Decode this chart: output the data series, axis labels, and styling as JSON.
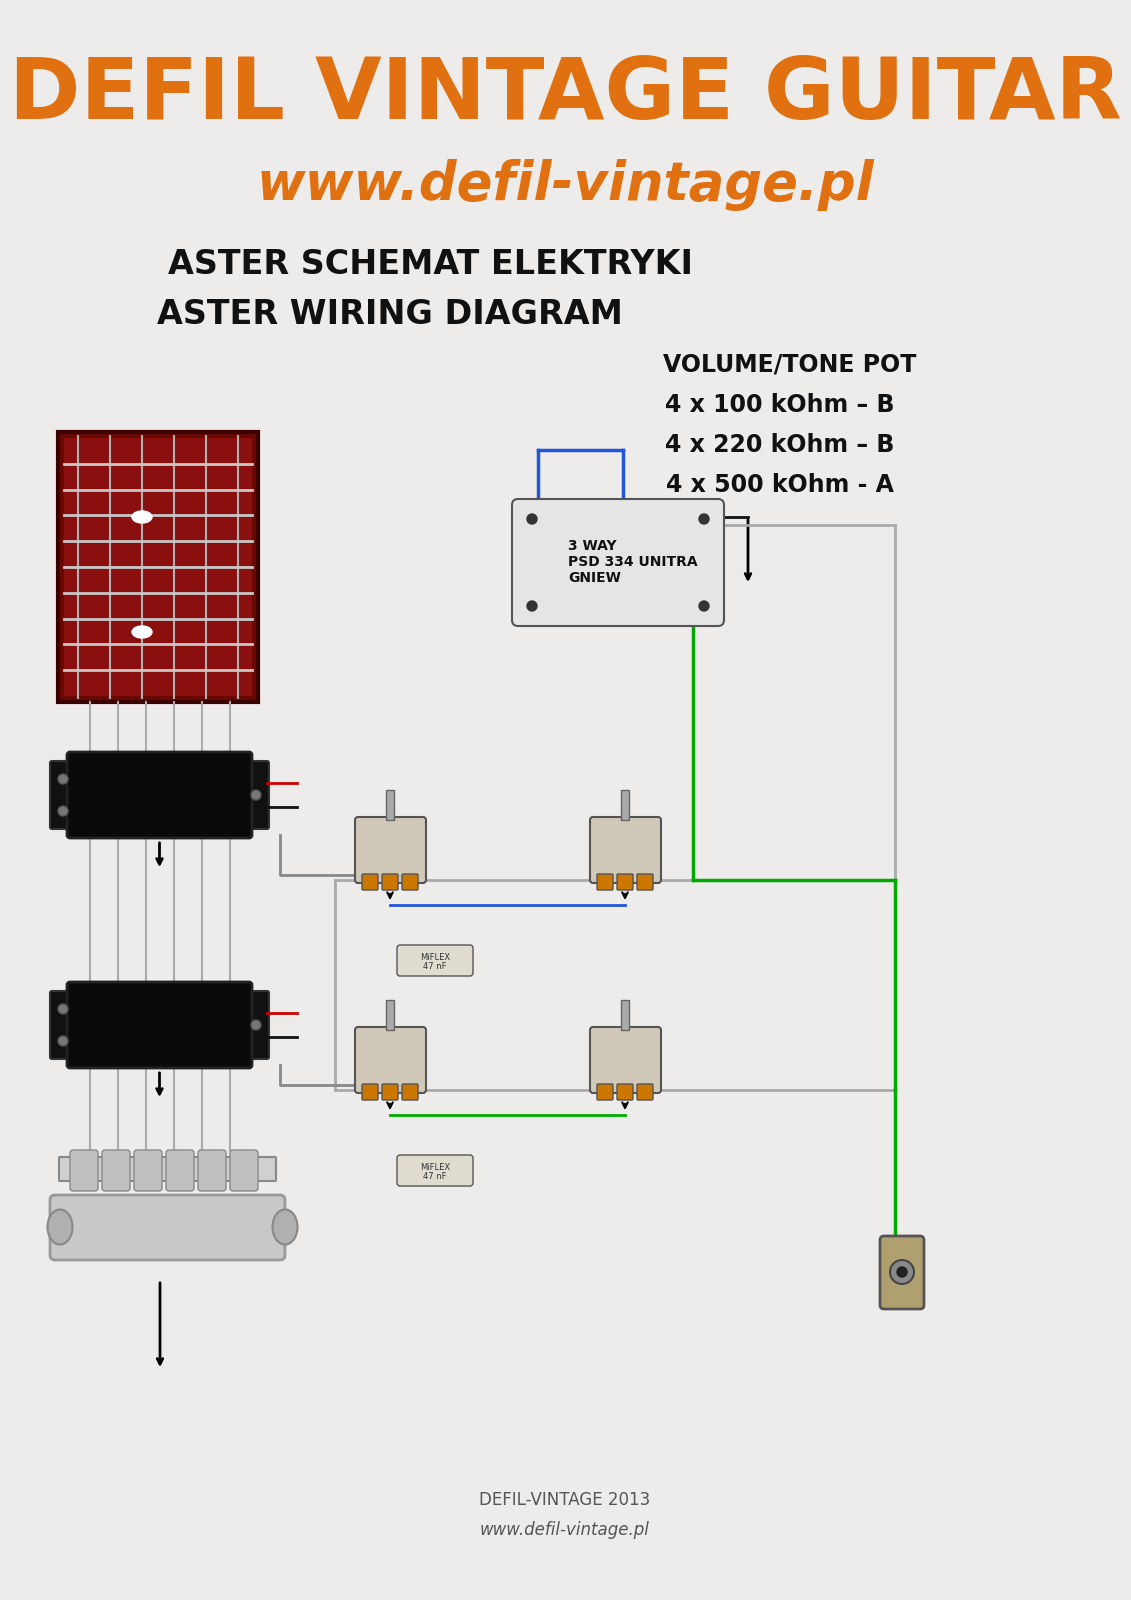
{
  "bg_color": "#eeeceb",
  "title_main": "DEFIL VINTAGE GUITAR",
  "title_main_color": "#e07010",
  "title_main_fontsize": 62,
  "title_url": "www.defil-vintage.pl",
  "title_url_color": "#e07010",
  "title_url_fontsize": 38,
  "subtitle1": "ASTER SCHEMAT ELEKTRYKI",
  "subtitle2": "ASTER WIRING DIAGRAM",
  "subtitle_fontsize": 24,
  "subtitle_color": "#111111",
  "pot_title": "VOLUME/TONE POT",
  "pot_lines": [
    "4 x 100 kOhm – B",
    "4 x 220 kOhm – B",
    "4 x 500 kOhm - A"
  ],
  "pot_fontsize": 17,
  "footer1": "DEFIL-VINTAGE 2013",
  "footer2": "www.defil-vintage.pl",
  "footer_fontsize": 12,
  "footer_color": "#555555",
  "switch_label": "3 WAY\nPSD 334 UNITRA\nGNIEW",
  "switch_label_fontsize": 10
}
